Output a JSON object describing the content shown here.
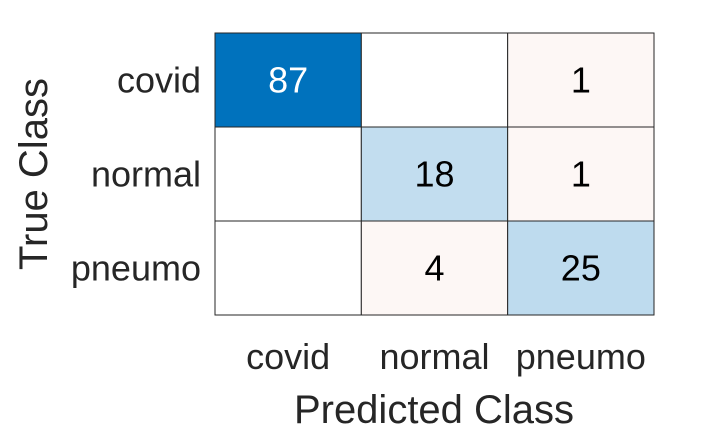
{
  "chart_data": {
    "type": "heatmap",
    "title": "",
    "xlabel": "Predicted Class",
    "ylabel": "True Class",
    "row_categories": [
      "covid",
      "normal",
      "pneumo"
    ],
    "col_categories": [
      "covid",
      "normal",
      "pneumo"
    ],
    "values": [
      [
        87,
        null,
        1
      ],
      [
        null,
        18,
        1
      ],
      [
        null,
        4,
        25
      ]
    ],
    "colors": {
      "diagonal_max": "#0072bd",
      "diagonal_mid": "#b2d3ea",
      "diagonal_low": "#c2ddef",
      "off_diagonal": "#fbf1ee",
      "empty": "#ffffff",
      "grid_line": "#262626",
      "text_dark": "#000000",
      "text_light": "#ffffff"
    }
  }
}
